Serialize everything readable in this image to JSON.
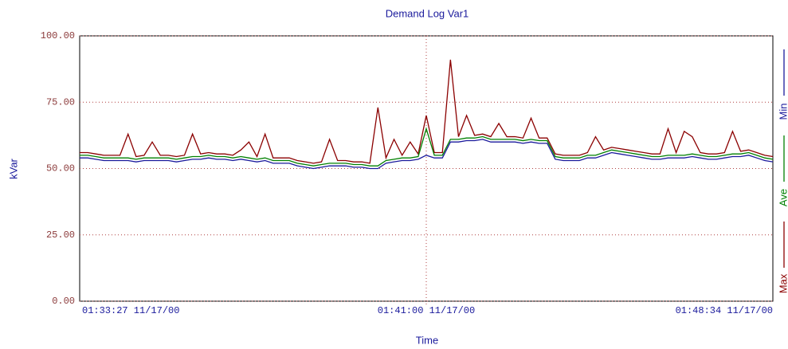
{
  "chart_data": {
    "type": "line",
    "title": "Demand Log Var1",
    "xlabel": "Time",
    "ylabel": "kVar",
    "categories": [
      "01:33:27 11/17/00",
      null,
      null,
      null,
      null,
      null,
      null,
      null,
      null,
      null,
      null,
      null,
      null,
      null,
      null,
      null,
      null,
      null,
      null,
      null,
      null,
      null,
      null,
      null,
      null,
      null,
      null,
      null,
      null,
      null,
      null,
      null,
      null,
      null,
      null,
      null,
      null,
      null,
      null,
      null,
      null,
      null,
      null,
      "01:41:00 11/17/00",
      null,
      null,
      null,
      null,
      null,
      null,
      null,
      null,
      null,
      null,
      null,
      null,
      null,
      null,
      null,
      null,
      null,
      null,
      null,
      null,
      null,
      null,
      null,
      null,
      null,
      null,
      null,
      null,
      null,
      null,
      null,
      null,
      null,
      null,
      null,
      null,
      null,
      null,
      null,
      null,
      null,
      null,
      "01:48:34 11/17/00"
    ],
    "series": [
      {
        "name": "Min",
        "color": "#1a1a9c",
        "values": [
          54,
          54,
          53.5,
          53,
          53,
          53,
          53,
          52.5,
          53,
          53,
          53,
          53,
          52.5,
          53,
          53.5,
          53.5,
          54,
          53.5,
          53.5,
          53,
          53.5,
          53,
          52.5,
          53,
          52,
          52,
          52,
          51,
          50.5,
          50,
          50.5,
          51,
          51,
          51,
          50.5,
          50.5,
          50,
          50,
          52,
          52.5,
          53,
          53,
          53.5,
          55,
          54,
          54,
          60,
          60,
          60.5,
          60.5,
          61,
          60,
          60,
          60,
          60,
          59.5,
          60,
          59.5,
          59.5,
          53.5,
          53,
          53,
          53,
          54,
          54,
          55,
          56,
          55.5,
          55,
          54.5,
          54,
          53.5,
          53.5,
          54,
          54,
          54,
          54.5,
          54,
          53.5,
          53.5,
          54,
          54.5,
          54.5,
          55,
          54,
          53,
          52.5
        ]
      },
      {
        "name": "Ave",
        "color": "#008000",
        "values": [
          55,
          55,
          54.5,
          54,
          54,
          54,
          54,
          53.5,
          54,
          54,
          54,
          54,
          53.5,
          54,
          54.5,
          54.5,
          55,
          54.5,
          54.5,
          54,
          54.5,
          54,
          53.5,
          54,
          53,
          53,
          53,
          52,
          51.5,
          51,
          51.5,
          52,
          52,
          52,
          51.5,
          51.5,
          51,
          51,
          53,
          53.5,
          54,
          54,
          54.5,
          65,
          55,
          55,
          61,
          61,
          61.5,
          61.5,
          62,
          61,
          61,
          61,
          61,
          60.5,
          61,
          60.5,
          60.5,
          54.5,
          54,
          54,
          54,
          55,
          55,
          56,
          57,
          56.5,
          56,
          55.5,
          55,
          54.5,
          54.5,
          55,
          55,
          55,
          55.5,
          55,
          54.5,
          54.5,
          55,
          55.5,
          55.5,
          56,
          55,
          54,
          53.5
        ]
      },
      {
        "name": "Max",
        "color": "#8b0000",
        "values": [
          56,
          56,
          55.5,
          55,
          55,
          55,
          63,
          54.5,
          55,
          60,
          55,
          55,
          54.5,
          55,
          63,
          55.5,
          56,
          55.5,
          55.5,
          55,
          57,
          60,
          54.5,
          63,
          54,
          54,
          54,
          53,
          52.5,
          52,
          52.5,
          61,
          53,
          53,
          52.5,
          52.5,
          52,
          73,
          54,
          61,
          55,
          60,
          55.5,
          70,
          56,
          56,
          91,
          62,
          70,
          62.5,
          63,
          62,
          67,
          62,
          62,
          61.5,
          69,
          61.5,
          61.5,
          55.5,
          55,
          55,
          55,
          56,
          62,
          57,
          58,
          57.5,
          57,
          56.5,
          56,
          55.5,
          55.5,
          65,
          56,
          64,
          62,
          56,
          55.5,
          55.5,
          56,
          64,
          56.5,
          57,
          56,
          55,
          54.5
        ]
      }
    ],
    "ylim": [
      0,
      100
    ],
    "yticks": [
      {
        "value": 0,
        "label": "0.00"
      },
      {
        "value": 25,
        "label": "25.00"
      },
      {
        "value": 50,
        "label": "50.00"
      },
      {
        "value": 75,
        "label": "75.00"
      },
      {
        "value": 100,
        "label": "100.00"
      }
    ],
    "grid": true
  }
}
